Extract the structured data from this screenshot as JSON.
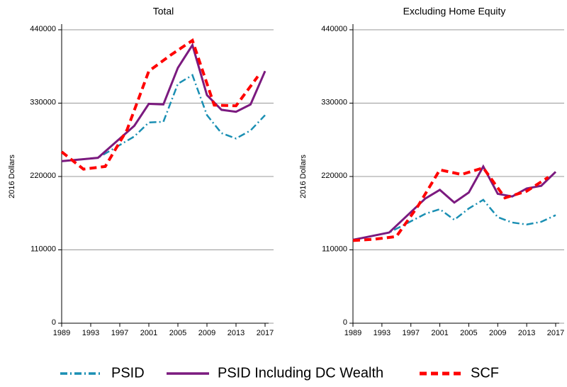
{
  "chart_data": [
    {
      "type": "line",
      "title": "Total",
      "ylabel": "2016 Dollars",
      "xlim": [
        1989,
        2017
      ],
      "xticks": [
        1989,
        1993,
        1997,
        2001,
        2005,
        2009,
        2013,
        2017
      ],
      "ylim": [
        0,
        440000
      ],
      "yticks": [
        0,
        110000,
        220000,
        330000,
        440000
      ],
      "grid": true,
      "legend": "bottom",
      "series": [
        {
          "name": "PSID",
          "color": "#1a8fb3",
          "dash": "dashdot",
          "x": [
            1989,
            1994,
            1999,
            2001,
            2003,
            2005,
            2007,
            2009,
            2011,
            2013,
            2015,
            2017
          ],
          "values": [
            243000,
            248000,
            280000,
            301000,
            302000,
            359000,
            372000,
            312000,
            285000,
            277000,
            289000,
            312000
          ]
        },
        {
          "name": "PSID Including DC Wealth",
          "color": "#7b1a7f",
          "dash": "solid",
          "x": [
            1989,
            1994,
            1999,
            2001,
            2003,
            2005,
            2007,
            2009,
            2011,
            2013,
            2015,
            2017
          ],
          "values": [
            243000,
            248000,
            296000,
            329000,
            328000,
            383000,
            417000,
            342000,
            320000,
            317000,
            328000,
            378000
          ]
        },
        {
          "name": "SCF",
          "color": "#ff0000",
          "dash": "dashed",
          "x": [
            1989,
            1992,
            1995,
            1998,
            2001,
            2004,
            2007,
            2010,
            2013,
            2016
          ],
          "values": [
            257000,
            231000,
            235000,
            290000,
            378000,
            402000,
            424000,
            327000,
            326000,
            370000
          ]
        }
      ]
    },
    {
      "type": "line",
      "title": "Excluding Home Equity",
      "ylabel": "2016 Dollars",
      "xlim": [
        1989,
        2017
      ],
      "xticks": [
        1989,
        1993,
        1997,
        2001,
        2005,
        2009,
        2013,
        2017
      ],
      "ylim": [
        0,
        440000
      ],
      "yticks": [
        0,
        110000,
        220000,
        330000,
        440000
      ],
      "grid": true,
      "series": [
        {
          "color": "#1a8fb3",
          "dash": "dashdot",
          "x": [
            1989,
            1994,
            1999,
            2001,
            2003,
            2005,
            2007,
            2009,
            2011,
            2013,
            2015,
            2017
          ],
          "values": [
            125000,
            136000,
            164000,
            171000,
            155000,
            172000,
            185000,
            159000,
            151000,
            148000,
            152000,
            162000
          ]
        },
        {
          "color": "#7b1a7f",
          "dash": "solid",
          "x": [
            1989,
            1994,
            1999,
            2001,
            2003,
            2005,
            2007,
            2009,
            2011,
            2013,
            2015,
            2017
          ],
          "values": [
            125000,
            136000,
            187000,
            200000,
            181000,
            196000,
            235000,
            194000,
            190000,
            202000,
            206000,
            227000
          ]
        },
        {
          "color": "#ff0000",
          "dash": "dashed",
          "x": [
            1989,
            1992,
            1995,
            1998,
            2001,
            2004,
            2007,
            2010,
            2013,
            2016
          ],
          "values": [
            124000,
            126000,
            130000,
            176000,
            230000,
            223000,
            233000,
            188000,
            198000,
            219000
          ]
        }
      ]
    }
  ]
}
